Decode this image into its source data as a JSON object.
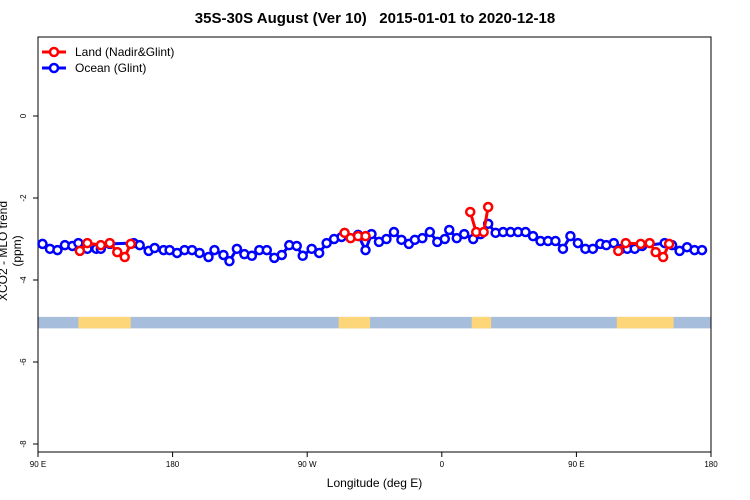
{
  "chart_data": {
    "type": "line",
    "title": "35S-30S August (Ver 10)   2015-01-01 to 2020-12-18",
    "xlabel": "Longitude (deg E)",
    "ylabel": "XCO2 - MLO trend (ppm)",
    "xlim": [
      90,
      540
    ],
    "ylim": [
      -8.2,
      1.9
    ],
    "xticks": [
      {
        "v": 90,
        "label": "90 E"
      },
      {
        "v": 180,
        "label": "180"
      },
      {
        "v": 270,
        "label": "90 W"
      },
      {
        "v": 360,
        "label": "0"
      },
      {
        "v": 450,
        "label": "90 E"
      },
      {
        "v": 540,
        "label": "180"
      }
    ],
    "yticks": [
      {
        "v": 0,
        "label": "0"
      },
      {
        "v": -2,
        "label": "-2"
      },
      {
        "v": -4,
        "label": "-4"
      },
      {
        "v": -6,
        "label": "-6"
      },
      {
        "v": -8,
        "label": "-8"
      }
    ],
    "legend_position": "top-left",
    "grid": false,
    "series": [
      {
        "name": "Land (Nadir&Glint)",
        "color": "#ff0000",
        "segments": [
          [
            [
              118,
              -3.29
            ],
            [
              123,
              -3.1
            ],
            [
              132,
              -3.15
            ],
            [
              138,
              -3.1
            ],
            [
              143,
              -3.32
            ],
            [
              148,
              -3.44
            ],
            [
              152,
              -3.12
            ]
          ],
          [
            [
              295,
              -2.85
            ],
            [
              299,
              -2.98
            ],
            [
              304,
              -2.93
            ],
            [
              309,
              -2.93
            ]
          ],
          [
            [
              379,
              -2.34
            ],
            [
              383,
              -2.83
            ],
            [
              388,
              -2.83
            ],
            [
              391,
              -2.22
            ]
          ],
          [
            [
              478,
              -3.29
            ],
            [
              483,
              -3.1
            ],
            [
              493,
              -3.12
            ],
            [
              499,
              -3.1
            ],
            [
              503,
              -3.32
            ],
            [
              508,
              -3.44
            ],
            [
              512,
              -3.12
            ]
          ]
        ]
      },
      {
        "name": "Ocean (Glint)",
        "color": "#0000ff",
        "segments": [
          [
            [
              93,
              -3.12
            ],
            [
              98,
              -3.24
            ],
            [
              103,
              -3.27
            ],
            [
              108,
              -3.15
            ],
            [
              113,
              -3.17
            ],
            [
              117,
              -3.1
            ],
            [
              123,
              -3.24
            ],
            [
              129,
              -3.24
            ],
            [
              132,
              -3.24
            ],
            [
              138,
              -3.12
            ],
            [
              154,
              -3.1
            ],
            [
              158,
              -3.15
            ],
            [
              164,
              -3.29
            ],
            [
              168,
              -3.22
            ],
            [
              174,
              -3.27
            ],
            [
              178,
              -3.27
            ],
            [
              183,
              -3.34
            ],
            [
              188,
              -3.27
            ],
            [
              193,
              -3.27
            ],
            [
              198,
              -3.34
            ],
            [
              204,
              -3.44
            ],
            [
              208,
              -3.27
            ],
            [
              214,
              -3.39
            ],
            [
              218,
              -3.54
            ],
            [
              223,
              -3.24
            ],
            [
              228,
              -3.37
            ],
            [
              233,
              -3.41
            ],
            [
              238,
              -3.27
            ],
            [
              243,
              -3.27
            ],
            [
              248,
              -3.46
            ],
            [
              253,
              -3.39
            ],
            [
              258,
              -3.15
            ],
            [
              263,
              -3.17
            ],
            [
              267,
              -3.41
            ],
            [
              273,
              -3.24
            ],
            [
              278,
              -3.34
            ],
            [
              283,
              -3.1
            ],
            [
              288,
              -3.0
            ],
            [
              293,
              -2.95
            ],
            [
              304,
              -2.9
            ],
            [
              309,
              -3.27
            ],
            [
              313,
              -2.88
            ],
            [
              318,
              -3.07
            ],
            [
              323,
              -3.0
            ],
            [
              328,
              -2.83
            ],
            [
              333,
              -3.02
            ],
            [
              338,
              -3.12
            ],
            [
              342,
              -3.02
            ],
            [
              347,
              -2.98
            ],
            [
              352,
              -2.83
            ],
            [
              357,
              -3.07
            ],
            [
              362,
              -3.0
            ],
            [
              365,
              -2.78
            ],
            [
              370,
              -2.98
            ],
            [
              375,
              -2.88
            ],
            [
              381,
              -3.0
            ],
            [
              386,
              -2.88
            ],
            [
              391,
              -2.63
            ],
            [
              396,
              -2.85
            ],
            [
              401,
              -2.83
            ],
            [
              406,
              -2.83
            ],
            [
              411,
              -2.83
            ],
            [
              416,
              -2.83
            ],
            [
              421,
              -2.93
            ],
            [
              426,
              -3.05
            ],
            [
              431,
              -3.05
            ],
            [
              436,
              -3.05
            ],
            [
              441,
              -3.24
            ],
            [
              446,
              -2.93
            ],
            [
              451,
              -3.1
            ],
            [
              456,
              -3.24
            ],
            [
              461,
              -3.24
            ],
            [
              466,
              -3.12
            ],
            [
              470,
              -3.15
            ],
            [
              475,
              -3.1
            ],
            [
              480,
              -3.24
            ],
            [
              484,
              -3.24
            ],
            [
              489,
              -3.24
            ],
            [
              494,
              -3.17
            ],
            [
              509,
              -3.1
            ],
            [
              514,
              -3.15
            ],
            [
              519,
              -3.29
            ],
            [
              524,
              -3.2
            ],
            [
              529,
              -3.27
            ],
            [
              534,
              -3.27
            ]
          ]
        ]
      }
    ],
    "map_strip": {
      "ocean_color": "#a6bddb",
      "land_color": "#fdd67a",
      "y_range": [
        -5.18,
        -4.9
      ],
      "land_lon_ranges": [
        [
          117,
          152
        ],
        [
          291,
          312
        ],
        [
          380,
          393
        ],
        [
          477,
          515
        ]
      ]
    }
  }
}
